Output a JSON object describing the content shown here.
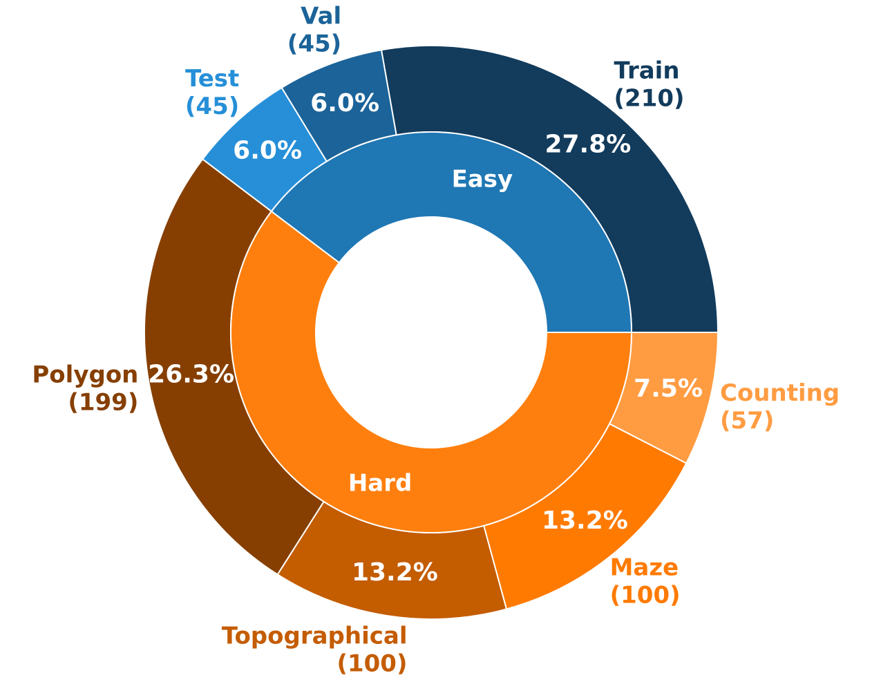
{
  "chart_data": {
    "type": "pie",
    "subtype": "nested-donut",
    "title": "",
    "inner_ring": [
      {
        "label": "Easy",
        "value": 300,
        "color": "#1f77b4"
      },
      {
        "label": "Hard",
        "value": 456,
        "color": "#ff7f0e"
      }
    ],
    "outer_ring": [
      {
        "name": "Train",
        "count_label": "(210)",
        "value": 210,
        "percent_label": "27.8%",
        "color": "#123b5c"
      },
      {
        "name": "Val",
        "count_label": "(45)",
        "value": 45,
        "percent_label": "6.0%",
        "color": "#1b6399"
      },
      {
        "name": "Test",
        "count_label": "(45)",
        "value": 45,
        "percent_label": "6.0%",
        "color": "#268fd8"
      },
      {
        "name": "Polygon",
        "count_label": "(199)",
        "value": 199,
        "percent_label": "26.3%",
        "color": "#863f00"
      },
      {
        "name": "Topographical",
        "count_label": "(100)",
        "value": 100,
        "percent_label": "13.2%",
        "color": "#c45c00"
      },
      {
        "name": "Maze",
        "count_label": "(100)",
        "value": 100,
        "percent_label": "13.2%",
        "color": "#ff7a00"
      },
      {
        "name": "Counting",
        "count_label": "(57)",
        "value": 57,
        "percent_label": "7.5%",
        "color": "#ff9c42"
      }
    ],
    "start_angle_deg": 0,
    "direction": "counterclockwise",
    "legend": "none"
  }
}
